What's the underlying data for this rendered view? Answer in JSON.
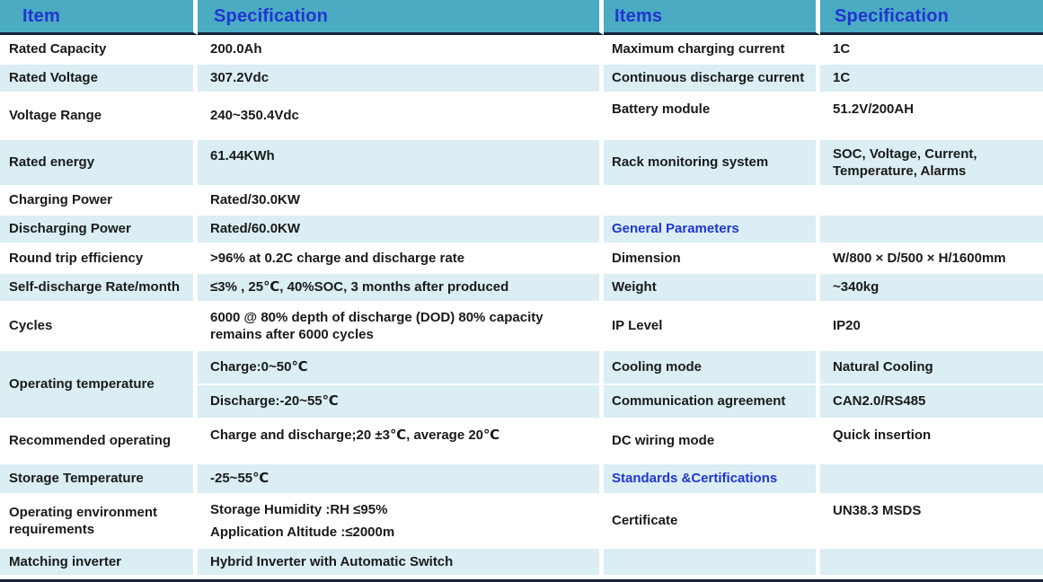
{
  "colors": {
    "header_bg": "#4AABC3",
    "header_text": "#2135D1",
    "section_text": "#2135D1",
    "alt_row_bg": "#DAEEF3",
    "row_bg": "#FFFFFF",
    "body_text": "#1A1A1A",
    "dark_border": "#18243D"
  },
  "headers": {
    "item": "Item",
    "specification": "Specification",
    "items": "Items",
    "specification2": "Specification"
  },
  "left_rows": [
    {
      "item": "Rated Capacity",
      "spec": "200.0Ah"
    },
    {
      "item": "Rated Voltage",
      "spec": "307.2Vdc"
    },
    {
      "item": "Voltage Range",
      "spec": "240~350.4Vdc"
    },
    {
      "item": "Rated  energy",
      "spec": "61.44KWh"
    },
    {
      "item": "Charging Power",
      "spec": "Rated/30.0KW"
    },
    {
      "item": "Discharging Power",
      "spec": "Rated/60.0KW"
    },
    {
      "item": "Round trip efficiency",
      "spec": ">96% at 0.2C charge and discharge rate"
    },
    {
      "item": "Self-discharge Rate/month",
      "spec": "≤3% , 25℃, 40%SOC, 3 months after produced"
    },
    {
      "item": "Cycles",
      "spec": "6000 @ 80% depth of discharge (DOD) 80% capacity remains after 6000 cycles"
    },
    {
      "item": "Operating temperature",
      "spec_charge": "Charge:0~50℃",
      "spec_discharge": "Discharge:-20~55℃"
    },
    {
      "item": "Recommended operating",
      "spec": "Charge and discharge;20 ±3℃, average 20℃"
    },
    {
      "item": "Storage Temperature",
      "spec": "-25~55℃"
    },
    {
      "item": "Operating environment requirements",
      "spec_line1": "Storage Humidity :RH ≤95%",
      "spec_line2": "Application Altitude :≤2000m"
    },
    {
      "item": "Matching inverter",
      "spec": "Hybrid Inverter with Automatic Switch"
    }
  ],
  "right_rows": [
    {
      "item": "Maximum charging current",
      "spec": "1C"
    },
    {
      "item": "Continuous discharge current",
      "spec": "1C"
    },
    {
      "item": "Battery module",
      "spec": "51.2V/200AH"
    },
    {
      "item": "Rack monitoring system",
      "spec": "SOC, Voltage, Current, Temperature, Alarms"
    },
    {
      "item": "",
      "spec": ""
    },
    {
      "item": "General Parameters",
      "spec": "",
      "is_section": true
    },
    {
      "item": "Dimension",
      "spec": "W/800 × D/500 × H/1600mm"
    },
    {
      "item": "Weight",
      "spec": "~340kg"
    },
    {
      "item": "IP Level",
      "spec": "IP20"
    },
    {
      "item": "Cooling mode",
      "spec": "Natural Cooling"
    },
    {
      "item": "Communication agreement",
      "spec": "CAN2.0/RS485"
    },
    {
      "item": "DC wiring mode",
      "spec": "Quick insertion"
    },
    {
      "item": "Standards &Certifications",
      "spec": "",
      "is_section": true
    },
    {
      "item": "Certificate",
      "spec": "UN38.3 MSDS"
    },
    {
      "item": "",
      "spec": ""
    }
  ]
}
